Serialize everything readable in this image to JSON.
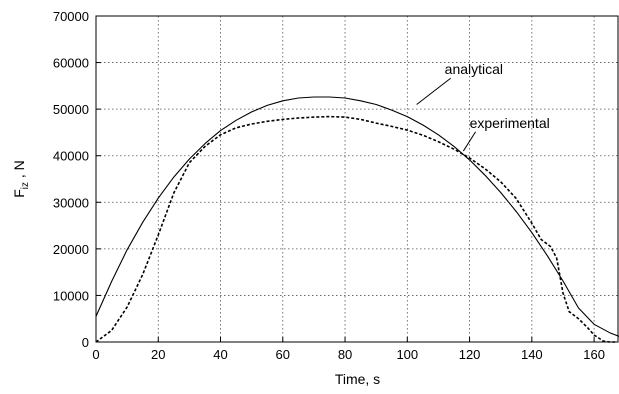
{
  "chart_data": {
    "type": "line",
    "xlabel": "Time,  s",
    "ylabel_main": "F",
    "ylabel_sub": "iz",
    "ylabel_rest": " ,  N",
    "xlim": [
      0,
      168
    ],
    "ylim": [
      0,
      70000
    ],
    "xticks": [
      0,
      20,
      40,
      60,
      80,
      100,
      120,
      140,
      160
    ],
    "yticks": [
      0,
      10000,
      20000,
      30000,
      40000,
      50000,
      60000,
      70000
    ],
    "grid": true,
    "series": [
      {
        "name": "analytical",
        "style": "solid",
        "x": [
          0,
          5,
          10,
          15,
          20,
          25,
          30,
          35,
          40,
          45,
          50,
          55,
          60,
          65,
          70,
          75,
          80,
          85,
          90,
          95,
          100,
          105,
          110,
          115,
          120,
          125,
          130,
          135,
          140,
          145,
          150,
          155,
          160,
          165,
          168
        ],
        "y": [
          5500,
          13000,
          19800,
          25700,
          30900,
          35400,
          39300,
          42600,
          45400,
          47600,
          49400,
          50800,
          51800,
          52400,
          52600,
          52600,
          52400,
          51800,
          51000,
          49800,
          48400,
          46600,
          44500,
          42000,
          39100,
          35800,
          32100,
          28000,
          23500,
          18500,
          13100,
          7300,
          3800,
          2000,
          1200
        ]
      },
      {
        "name": "experimental",
        "style": "dashed",
        "x": [
          0,
          5,
          10,
          15,
          20,
          25,
          30,
          35,
          40,
          45,
          50,
          55,
          60,
          65,
          70,
          75,
          80,
          85,
          90,
          95,
          100,
          105,
          110,
          115,
          120,
          125,
          130,
          135,
          140,
          143,
          146,
          148,
          150,
          152,
          155,
          158,
          160,
          163,
          165,
          167
        ],
        "y": [
          0,
          2500,
          7500,
          14500,
          23000,
          32000,
          38500,
          42000,
          44500,
          46000,
          46800,
          47400,
          47800,
          48100,
          48300,
          48400,
          48300,
          47800,
          47000,
          46300,
          45500,
          44400,
          43000,
          41400,
          39500,
          37200,
          34400,
          30800,
          25500,
          22000,
          20500,
          18000,
          10500,
          6500,
          5000,
          3000,
          1500,
          200,
          0,
          0
        ]
      }
    ],
    "annotations": [
      {
        "text": "analytical",
        "x": 112,
        "y": 57500,
        "pointer_to": [
          103,
          51000
        ]
      },
      {
        "text": "experimental",
        "x": 120,
        "y": 46000,
        "pointer_to": [
          118,
          41000
        ]
      }
    ]
  }
}
